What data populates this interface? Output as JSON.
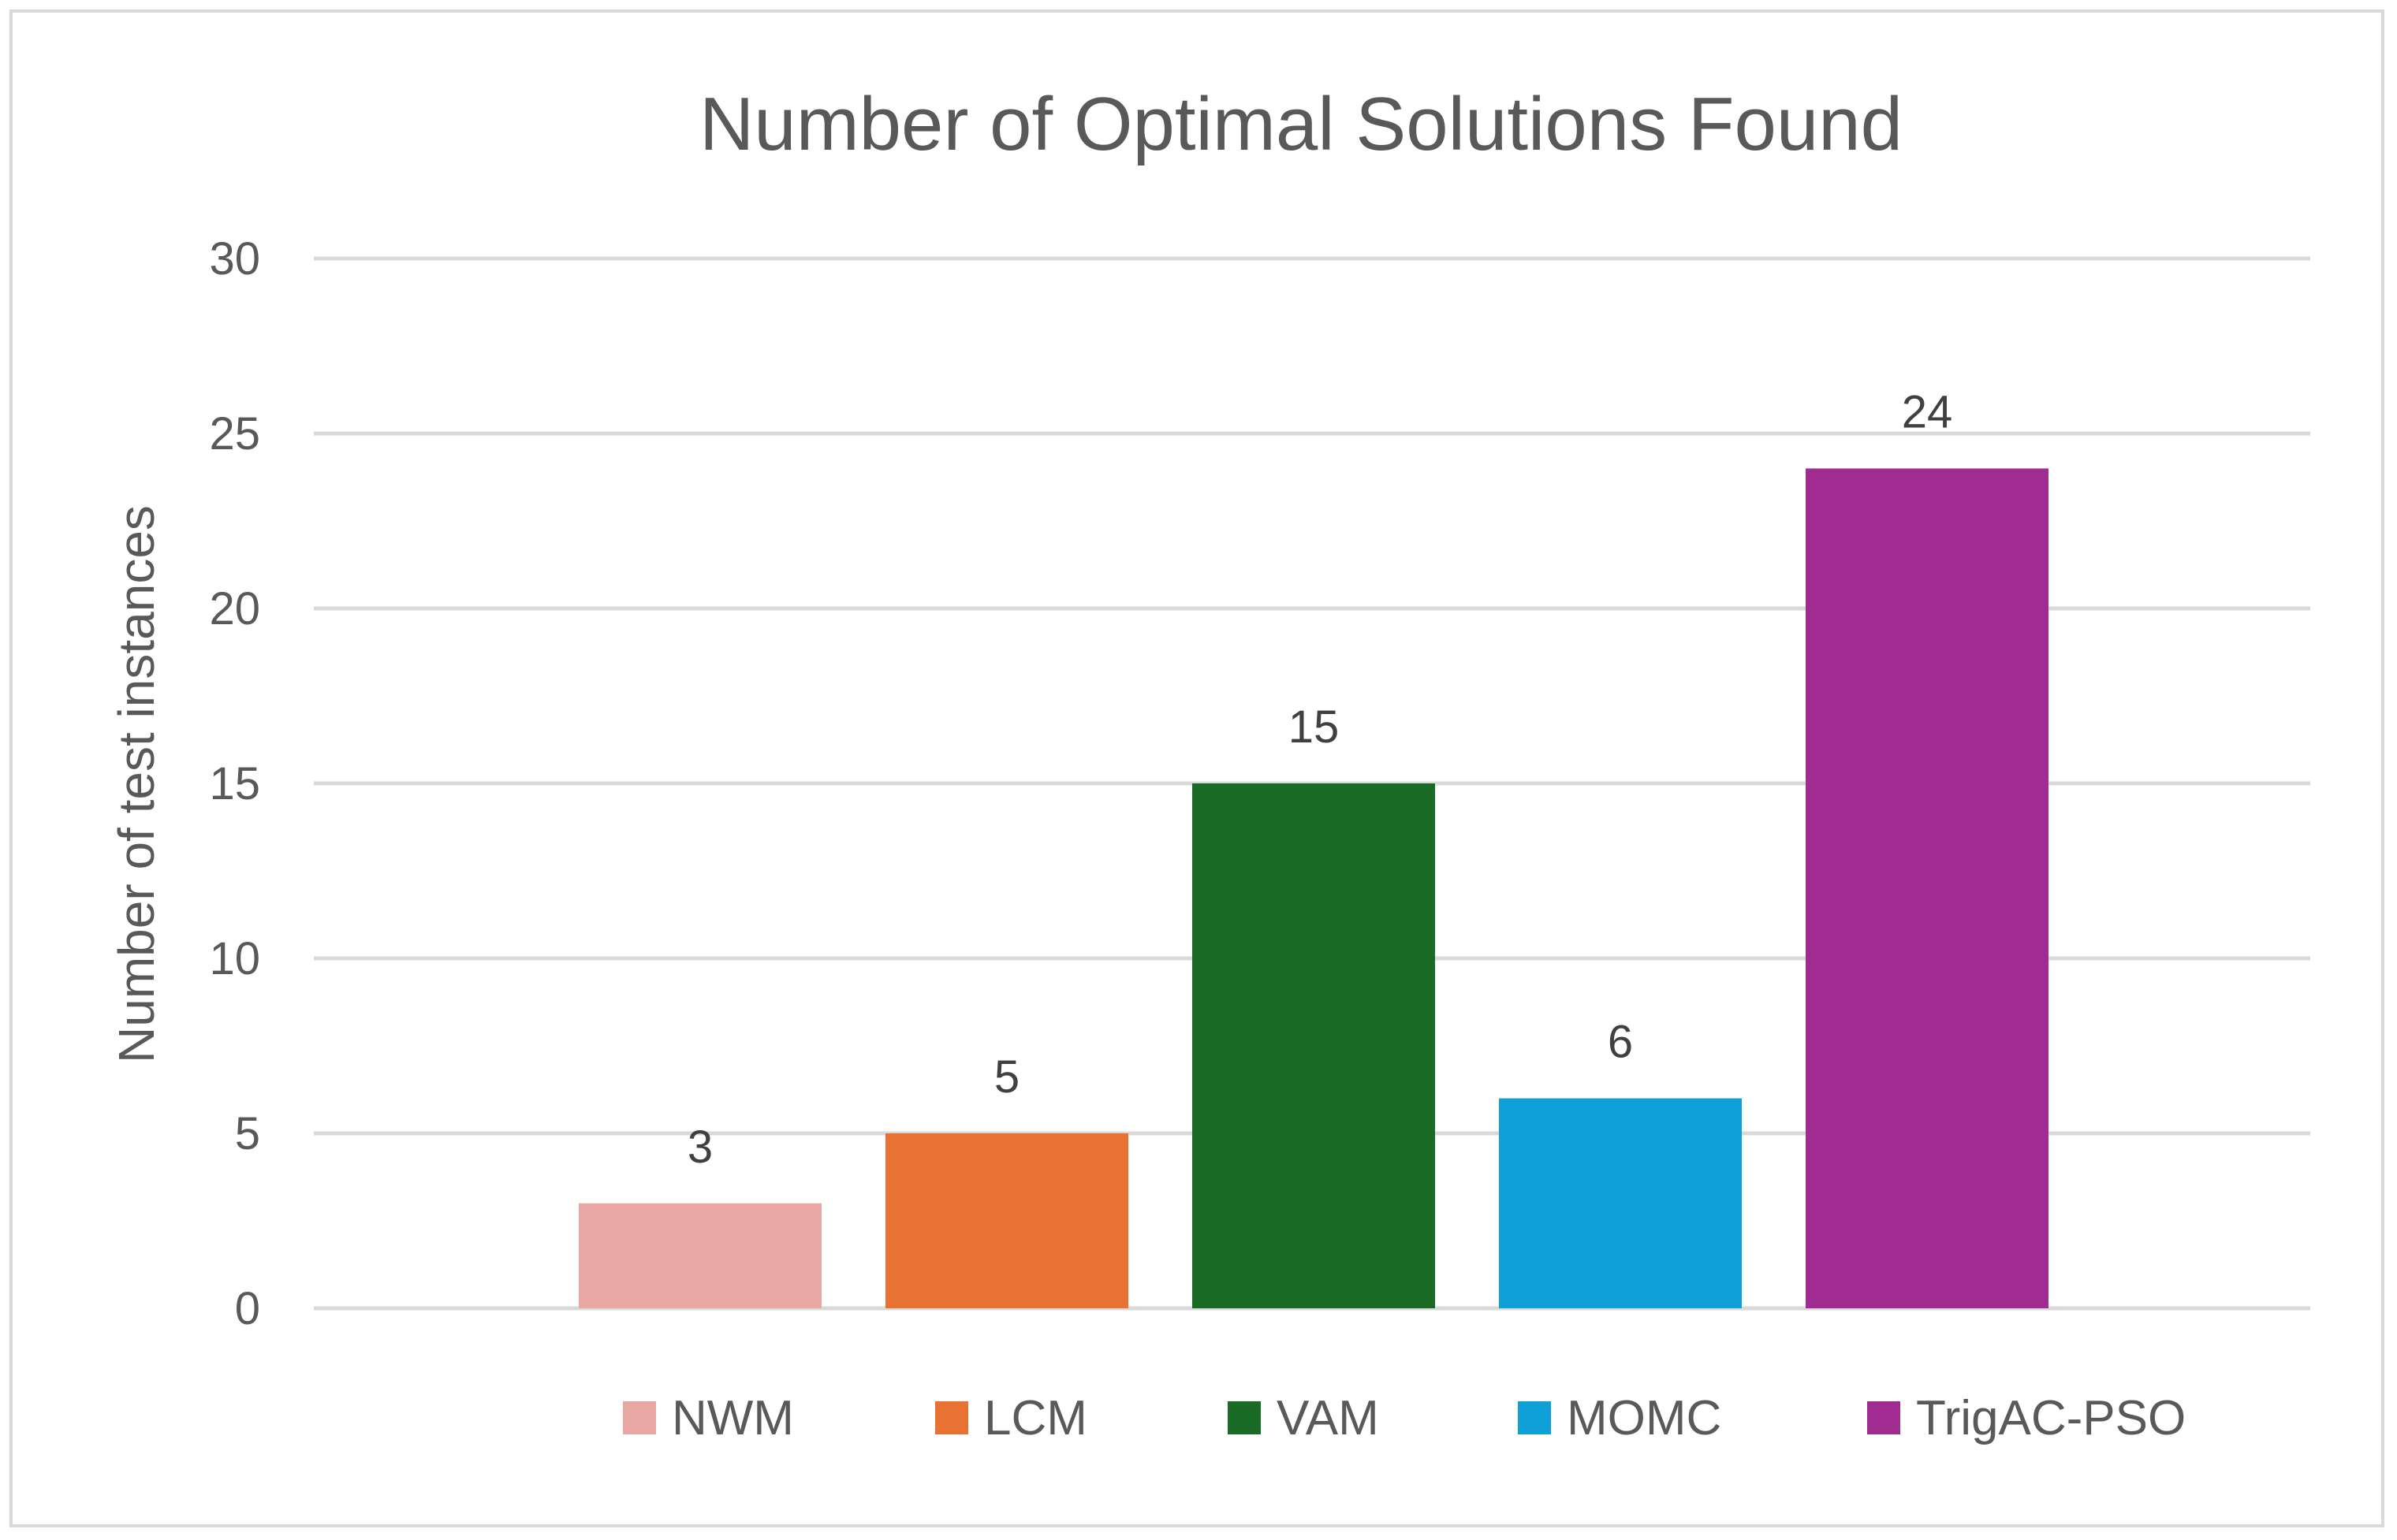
{
  "chart_data": {
    "type": "bar",
    "title": "Number of Optimal Solutions Found",
    "xlabel": "",
    "ylabel": "Number of test instances",
    "ylim": [
      0,
      30
    ],
    "yticks": [
      0,
      5,
      10,
      15,
      20,
      25,
      30
    ],
    "grid": true,
    "legend_position": "bottom",
    "categories": [
      "NWM",
      "LCM",
      "VAM",
      "MOMC",
      "TrigAC-PSO"
    ],
    "values": [
      3,
      5,
      15,
      6,
      24
    ],
    "colors": [
      "#e8a7a3",
      "#e87234",
      "#1a6b26",
      "#10a0d8",
      "#a02c91"
    ],
    "data_labels": [
      "3",
      "5",
      "15",
      "6",
      "24"
    ]
  }
}
